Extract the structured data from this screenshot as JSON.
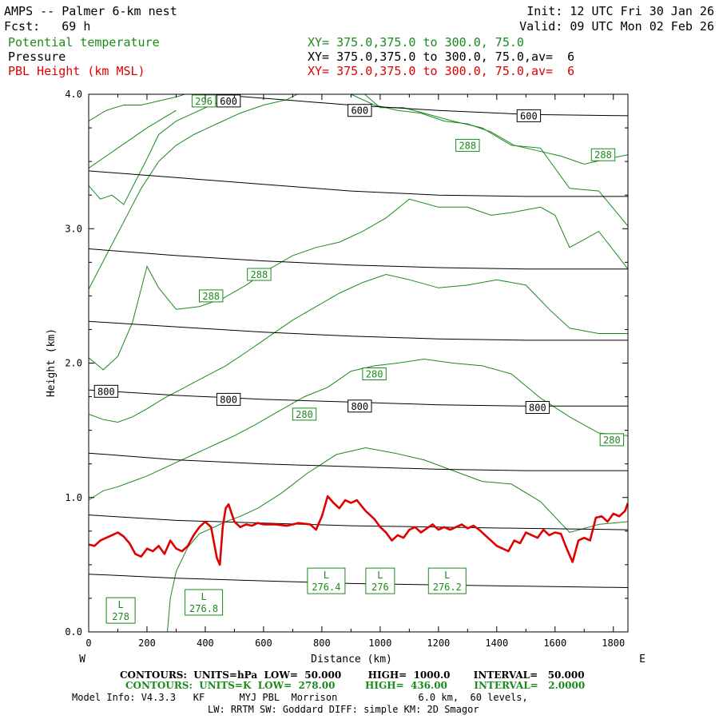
{
  "header": {
    "title": "AMPS -- Palmer 6-km nest",
    "fcst": "Fcst:   69 h",
    "init": "Init: 12 UTC Fri 30 Jan 26",
    "valid": "Valid: 09 UTC Mon 02 Feb 26",
    "field1": "Potential temperature",
    "field2": "Pressure",
    "field3": "PBL Height (km MSL)",
    "xs1": "XY= 375.0,375.0 to 300.0, 75.0",
    "xs2": "XY= 375.0,375.0 to 300.0, 75.0,av=  6",
    "xs3": "XY= 375.0,375.0 to 300.0, 75.0,av=  6"
  },
  "colors": {
    "theta": "#1a8a1a",
    "pressure": "#000000",
    "pbl": "#e00000"
  },
  "chart_data": {
    "type": "line",
    "xlabel": "Distance (km)",
    "ylabel": "Height (km)",
    "xlim": [
      0,
      1850
    ],
    "ylim": [
      0,
      4
    ],
    "x_ticks": [
      0,
      200,
      400,
      600,
      800,
      1000,
      1200,
      1400,
      1600,
      1800
    ],
    "x_tick_labels": [
      "0",
      "200",
      "400",
      "600",
      "800",
      "1000",
      "1200",
      "1400",
      "1600",
      "1800"
    ],
    "y_ticks": [
      0,
      1,
      2,
      3,
      4
    ],
    "y_tick_labels": [
      "0.0",
      "1.0",
      "2.0",
      "3.0",
      "4.0"
    ],
    "left_end_label": "W",
    "right_end_label": "E",
    "pressure_contours": [
      {
        "level": 600,
        "x": [
          0,
          300,
          600,
          900,
          1200,
          1500,
          1850
        ],
        "y": [
          4.05,
          4.02,
          3.97,
          3.92,
          3.88,
          3.85,
          3.84
        ]
      },
      {
        "level": 650,
        "x": [
          0,
          300,
          600,
          900,
          1200,
          1500,
          1850
        ],
        "y": [
          3.43,
          3.38,
          3.33,
          3.28,
          3.25,
          3.24,
          3.24
        ]
      },
      {
        "level": 700,
        "x": [
          0,
          300,
          600,
          900,
          1200,
          1500,
          1850
        ],
        "y": [
          2.85,
          2.8,
          2.76,
          2.73,
          2.71,
          2.7,
          2.7
        ]
      },
      {
        "level": 750,
        "x": [
          0,
          300,
          600,
          900,
          1200,
          1500,
          1850
        ],
        "y": [
          2.31,
          2.27,
          2.23,
          2.2,
          2.18,
          2.17,
          2.17
        ]
      },
      {
        "level": 800,
        "x": [
          0,
          300,
          600,
          900,
          1200,
          1500,
          1850
        ],
        "y": [
          1.8,
          1.76,
          1.73,
          1.71,
          1.69,
          1.68,
          1.68
        ]
      },
      {
        "level": 850,
        "x": [
          0,
          300,
          600,
          900,
          1200,
          1500,
          1850
        ],
        "y": [
          1.33,
          1.28,
          1.25,
          1.23,
          1.21,
          1.2,
          1.2
        ]
      },
      {
        "level": 900,
        "x": [
          0,
          300,
          600,
          900,
          1200,
          1500,
          1850
        ],
        "y": [
          0.87,
          0.83,
          0.81,
          0.79,
          0.78,
          0.77,
          0.76
        ]
      },
      {
        "level": 950,
        "x": [
          0,
          300,
          600,
          900,
          1200,
          1500,
          1850
        ],
        "y": [
          0.43,
          0.4,
          0.38,
          0.36,
          0.35,
          0.34,
          0.33
        ]
      }
    ],
    "pressure_labels": [
      {
        "text": "600",
        "x": 480,
        "y": 3.95
      },
      {
        "text": "600",
        "x": 930,
        "y": 3.88
      },
      {
        "text": "600",
        "x": 1510,
        "y": 3.84
      },
      {
        "text": "800",
        "x": 60,
        "y": 1.79
      },
      {
        "text": "800",
        "x": 480,
        "y": 1.73
      },
      {
        "text": "800",
        "x": 930,
        "y": 1.68
      },
      {
        "text": "800",
        "x": 1540,
        "y": 1.67
      }
    ],
    "theta_contours": [
      {
        "x": [
          270,
          280,
          300,
          340,
          380,
          430,
          470,
          520,
          580,
          660,
          750,
          850,
          950,
          1050,
          1150,
          1250,
          1350,
          1450,
          1550,
          1650,
          1750,
          1850
        ],
        "y": [
          0.0,
          0.25,
          0.45,
          0.63,
          0.73,
          0.78,
          0.82,
          0.86,
          0.92,
          1.03,
          1.18,
          1.32,
          1.37,
          1.33,
          1.28,
          1.2,
          1.12,
          1.1,
          0.97,
          0.74,
          0.8,
          0.82
        ]
      },
      {
        "x": [
          0,
          50,
          100,
          150,
          200,
          260,
          320,
          380,
          440,
          500,
          570,
          650,
          740,
          820,
          900,
          980,
          1060,
          1150,
          1250,
          1350,
          1450,
          1550,
          1650,
          1750,
          1850
        ],
        "y": [
          0.98,
          1.05,
          1.08,
          1.12,
          1.16,
          1.22,
          1.28,
          1.34,
          1.4,
          1.46,
          1.54,
          1.64,
          1.75,
          1.82,
          1.94,
          1.98,
          2.0,
          2.03,
          2.0,
          1.98,
          1.92,
          1.74,
          1.6,
          1.48,
          1.46
        ]
      },
      {
        "x": [
          0,
          50,
          100,
          150,
          200,
          260,
          330,
          400,
          470,
          540,
          620,
          700,
          780,
          860,
          940,
          1020,
          1100,
          1200,
          1300,
          1400,
          1500,
          1580,
          1650,
          1750,
          1850
        ],
        "y": [
          1.62,
          1.58,
          1.56,
          1.6,
          1.66,
          1.74,
          1.82,
          1.9,
          1.98,
          2.08,
          2.2,
          2.32,
          2.42,
          2.52,
          2.6,
          2.66,
          2.62,
          2.56,
          2.58,
          2.62,
          2.58,
          2.4,
          2.26,
          2.22,
          2.22
        ]
      },
      {
        "x": [
          0,
          50,
          100,
          150,
          200,
          240,
          300,
          380,
          460,
          540,
          620,
          700,
          780,
          860,
          940,
          1020,
          1100,
          1200,
          1300,
          1380,
          1450,
          1550,
          1600,
          1650,
          1700,
          1750,
          1850
        ],
        "y": [
          2.04,
          1.95,
          2.05,
          2.3,
          2.72,
          2.56,
          2.4,
          2.42,
          2.48,
          2.58,
          2.7,
          2.8,
          2.86,
          2.9,
          2.98,
          3.08,
          3.22,
          3.16,
          3.16,
          3.1,
          3.12,
          3.16,
          3.1,
          2.86,
          2.92,
          2.98,
          2.7
        ]
      },
      {
        "x": [
          0,
          60,
          120,
          180,
          240,
          300,
          360,
          440,
          520,
          600,
          680,
          760,
          840,
          920,
          1000,
          1080,
          1150,
          1250,
          1350,
          1450,
          1550,
          1650,
          1750,
          1850
        ],
        "y": [
          2.55,
          2.8,
          3.05,
          3.3,
          3.5,
          3.62,
          3.7,
          3.78,
          3.86,
          3.92,
          3.96,
          4.05,
          4.1,
          4.05,
          3.9,
          3.9,
          3.86,
          3.8,
          3.75,
          3.62,
          3.6,
          3.3,
          3.28,
          3.02
        ]
      },
      {
        "x": [
          0,
          40,
          80,
          120,
          160,
          200,
          240,
          300,
          360,
          420,
          500,
          580,
          660,
          740,
          820,
          900,
          980,
          1060,
          1140,
          1220,
          1300,
          1380,
          1460,
          1540,
          1620,
          1700,
          1780,
          1850
        ],
        "y": [
          3.32,
          3.22,
          3.25,
          3.18,
          3.35,
          3.52,
          3.7,
          3.8,
          3.86,
          3.92,
          3.98,
          4.05,
          4.1,
          4.15,
          4.08,
          4.0,
          3.92,
          3.88,
          3.86,
          3.8,
          3.78,
          3.72,
          3.62,
          3.58,
          3.54,
          3.48,
          3.52,
          3.55
        ]
      },
      {
        "x": [
          0,
          60,
          120,
          180,
          240,
          300,
          360,
          420,
          480
        ],
        "y": [
          3.8,
          3.88,
          3.92,
          3.92,
          3.95,
          3.98,
          4.02,
          4.05,
          4.1
        ]
      },
      {
        "x": [
          0,
          100,
          200,
          300
        ],
        "y": [
          3.45,
          3.6,
          3.75,
          3.88
        ]
      }
    ],
    "theta_labels": [
      {
        "text": "296",
        "x": 395,
        "y": 3.95
      },
      {
        "text": "288",
        "x": 1300,
        "y": 3.62
      },
      {
        "text": "288",
        "x": 1765,
        "y": 3.55
      },
      {
        "text": "288",
        "x": 585,
        "y": 2.66
      },
      {
        "text": "288",
        "x": 420,
        "y": 2.5
      },
      {
        "text": "280",
        "x": 980,
        "y": 1.92
      },
      {
        "text": "280",
        "x": 740,
        "y": 1.62
      },
      {
        "text": "280",
        "x": 1795,
        "y": 1.43
      }
    ],
    "low_labels": [
      {
        "text": "L",
        "value": "278",
        "x": 110,
        "y": 0.16
      },
      {
        "text": "L",
        "value": "276.8",
        "x": 395,
        "y": 0.22
      },
      {
        "text": "L",
        "value": "276.4",
        "x": 815,
        "y": 0.38
      },
      {
        "text": "L",
        "value": "276",
        "x": 1000,
        "y": 0.38
      },
      {
        "text": "L",
        "value": "276.2",
        "x": 1230,
        "y": 0.38
      }
    ],
    "pbl_height": {
      "x": [
        0,
        20,
        40,
        60,
        80,
        100,
        120,
        140,
        160,
        180,
        200,
        220,
        240,
        260,
        280,
        300,
        320,
        340,
        360,
        380,
        400,
        420,
        440,
        450,
        460,
        470,
        480,
        500,
        520,
        540,
        560,
        580,
        600,
        640,
        680,
        720,
        760,
        780,
        800,
        820,
        840,
        860,
        880,
        900,
        920,
        950,
        980,
        1000,
        1020,
        1040,
        1060,
        1080,
        1100,
        1120,
        1140,
        1160,
        1180,
        1200,
        1220,
        1240,
        1260,
        1280,
        1300,
        1320,
        1340,
        1360,
        1380,
        1400,
        1420,
        1440,
        1460,
        1480,
        1500,
        1520,
        1540,
        1560,
        1580,
        1600,
        1620,
        1640,
        1660,
        1680,
        1700,
        1720,
        1740,
        1760,
        1780,
        1800,
        1820,
        1840,
        1850
      ],
      "y": [
        0.65,
        0.64,
        0.68,
        0.7,
        0.72,
        0.74,
        0.71,
        0.66,
        0.58,
        0.56,
        0.62,
        0.6,
        0.64,
        0.58,
        0.68,
        0.62,
        0.6,
        0.64,
        0.72,
        0.78,
        0.82,
        0.78,
        0.55,
        0.5,
        0.78,
        0.92,
        0.95,
        0.82,
        0.78,
        0.8,
        0.79,
        0.81,
        0.8,
        0.8,
        0.79,
        0.81,
        0.8,
        0.76,
        0.86,
        1.01,
        0.96,
        0.92,
        0.98,
        0.96,
        0.98,
        0.9,
        0.84,
        0.78,
        0.74,
        0.68,
        0.72,
        0.7,
        0.76,
        0.78,
        0.74,
        0.77,
        0.8,
        0.76,
        0.78,
        0.76,
        0.78,
        0.8,
        0.77,
        0.79,
        0.76,
        0.72,
        0.68,
        0.64,
        0.62,
        0.6,
        0.68,
        0.66,
        0.74,
        0.72,
        0.7,
        0.76,
        0.72,
        0.74,
        0.73,
        0.62,
        0.52,
        0.68,
        0.7,
        0.68,
        0.85,
        0.86,
        0.82,
        0.88,
        0.86,
        0.9,
        0.96
      ]
    }
  },
  "footer": {
    "line1": "CONTOURS:  UNITS=hPa  LOW=  50.000        HIGH=  1000.0       INTERVAL=   50.000",
    "line2": "CONTOURS:  UNITS=K  LOW=  278.00         HIGH=  436.00        INTERVAL=   2.0000",
    "line3": "Model Info: V4.3.3   KF      MYJ PBL  Morrison              6.0 km,  60 levels,",
    "line4": "LW: RRTM SW: Goddard DIFF: simple KM: 2D Smagor"
  }
}
